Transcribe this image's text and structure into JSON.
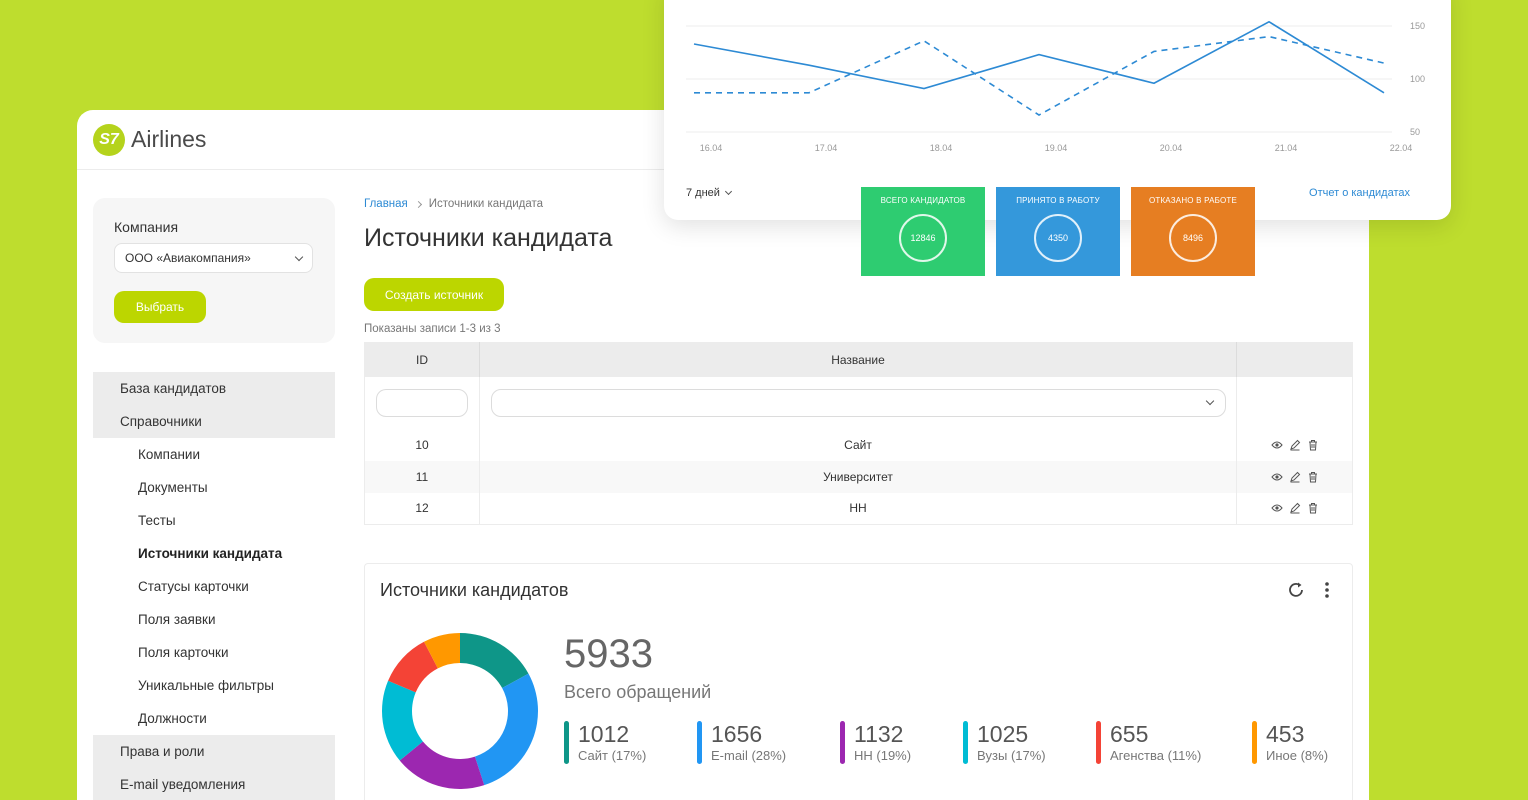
{
  "app": {
    "logo_badge": "S7",
    "logo_text": "Airlines"
  },
  "company": {
    "label": "Компания",
    "selected": "ООО «Авиакомпания»",
    "choose_label": "Выбрать"
  },
  "nav": [
    {
      "label": "База кандидатов"
    },
    {
      "label": "Справочники"
    },
    {
      "label": "Компании"
    },
    {
      "label": "Документы"
    },
    {
      "label": "Тесты"
    },
    {
      "label": "Источники кандидата"
    },
    {
      "label": "Статусы карточки"
    },
    {
      "label": "Поля заявки"
    },
    {
      "label": "Поля карточки"
    },
    {
      "label": "Уникальные фильтры"
    },
    {
      "label": "Должности"
    },
    {
      "label": "Права и роли"
    },
    {
      "label": "E-mail уведомления"
    }
  ],
  "breadcrumb": {
    "home": "Главная",
    "current": "Источники кандидата"
  },
  "page_title": "Источники кандидата",
  "create_label": "Создать источник",
  "records_text": "Показаны записи 1-3 из 3",
  "table": {
    "headers": [
      "ID",
      "Название"
    ],
    "rows": [
      {
        "id": "10",
        "name": "Сайт"
      },
      {
        "id": "11",
        "name": "Университет"
      },
      {
        "id": "12",
        "name": "HH"
      }
    ]
  },
  "sources_card": {
    "title": "Источники кандидатов",
    "total": "5933",
    "total_label": "Всего обращений",
    "legend": [
      {
        "value": "1012",
        "label": "Сайт (17%)",
        "color": "#0e9688"
      },
      {
        "value": "1656",
        "label": "E-mail (28%)",
        "color": "#2196f3"
      },
      {
        "value": "1132",
        "label": "HH (19%)",
        "color": "#9c27b0"
      },
      {
        "value": "1025",
        "label": "Вузы (17%)",
        "color": "#00bcd4"
      },
      {
        "value": "655",
        "label": "Агенства (11%)",
        "color": "#f44336"
      },
      {
        "value": "453",
        "label": "Иное (8%)",
        "color": "#ff9800"
      }
    ]
  },
  "chart_data": {
    "type": "line",
    "x": [
      "16.04",
      "17.04",
      "18.04",
      "19.04",
      "20.04",
      "21.04",
      "22.04"
    ],
    "yticks": [
      "150",
      "100",
      "50"
    ],
    "ylim": [
      50,
      150
    ],
    "series": [
      {
        "style": "solid",
        "color": "#2d8ad4",
        "values": [
          133,
          113,
          91,
          123,
          96,
          154,
          87
        ]
      },
      {
        "style": "dashed",
        "color": "#2d8ad4",
        "values": [
          87,
          87,
          136,
          66,
          126,
          140,
          115
        ]
      }
    ],
    "grid": true
  },
  "chart_footer": {
    "period": "7 дней",
    "report": "Отчет о кандидатах"
  },
  "stats": [
    {
      "label": "Всего кандидатов",
      "value": "12846",
      "color": "#2ecc71"
    },
    {
      "label": "Принято в работу",
      "value": "4350",
      "color": "#3498db"
    },
    {
      "label": "Отказано в работе",
      "value": "8496",
      "color": "#e67e22"
    }
  ]
}
